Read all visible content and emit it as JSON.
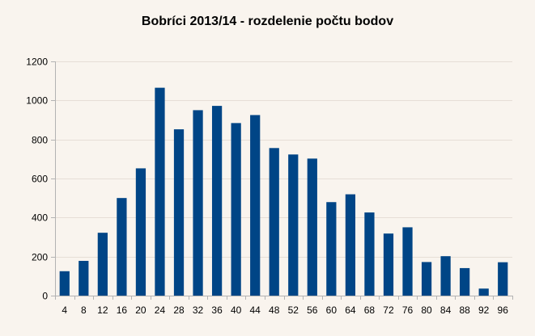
{
  "chart_data": {
    "type": "bar",
    "title": "Bobríci 2013/14 - rozdelenie počtu bodov",
    "xlabel": "",
    "ylabel": "",
    "categories": [
      "4",
      "8",
      "12",
      "16",
      "20",
      "24",
      "28",
      "32",
      "36",
      "40",
      "44",
      "48",
      "52",
      "56",
      "60",
      "64",
      "68",
      "72",
      "76",
      "80",
      "84",
      "88",
      "92",
      "96"
    ],
    "values": [
      125,
      178,
      322,
      500,
      652,
      1065,
      852,
      950,
      972,
      884,
      925,
      756,
      723,
      702,
      479,
      519,
      426,
      318,
      350,
      172,
      202,
      141,
      36,
      171
    ],
    "ylim": [
      0,
      1200
    ],
    "yticks": [
      0,
      200,
      400,
      600,
      800,
      1000,
      1200
    ],
    "grid": true,
    "legend": "none",
    "bar_color": "#004586",
    "grid_color": "#e6ded6",
    "axis_color": "#b3b3b3",
    "background": "#f9f4ee"
  }
}
